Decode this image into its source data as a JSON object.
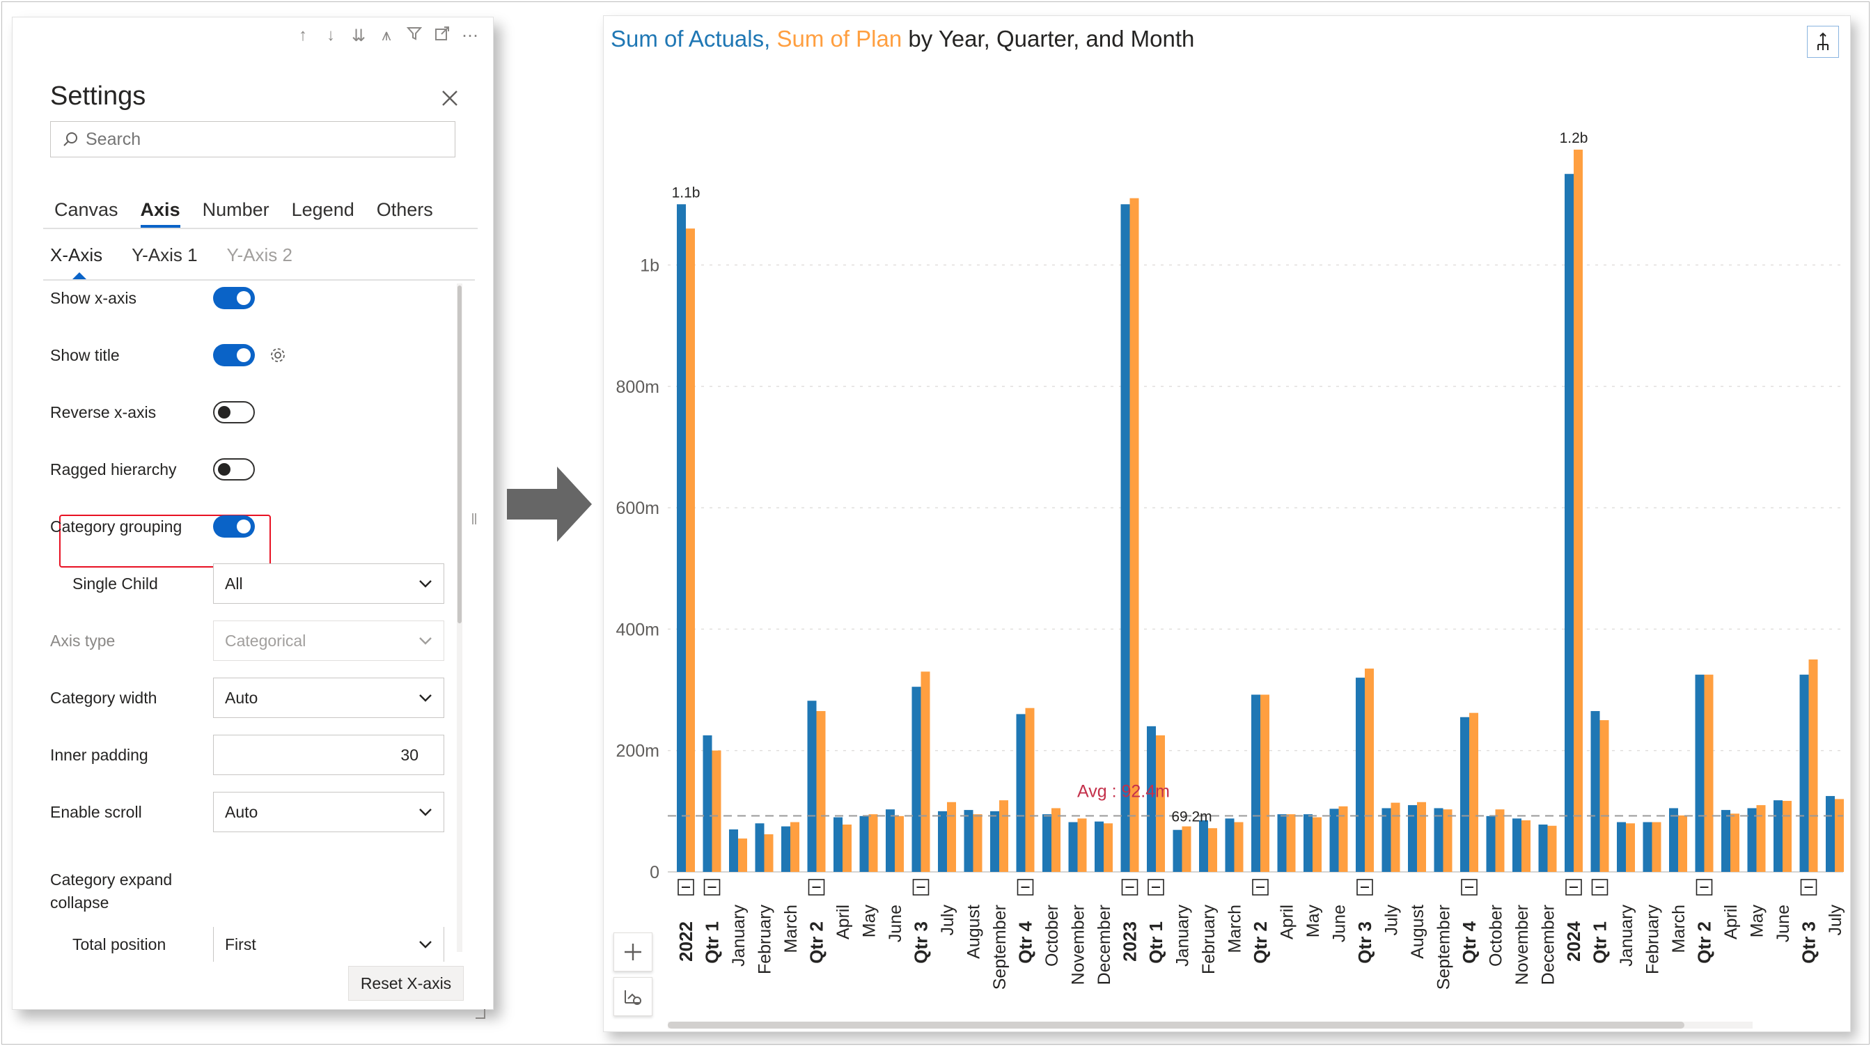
{
  "settings": {
    "title": "Settings",
    "search_placeholder": "Search",
    "tabs": [
      "Canvas",
      "Axis",
      "Number",
      "Legend",
      "Others"
    ],
    "active_tab": "Axis",
    "subtabs": [
      "X-Axis",
      "Y-Axis 1",
      "Y-Axis 2"
    ],
    "active_subtab": "X-Axis",
    "toggles": {
      "show_x_axis": {
        "label": "Show x-axis",
        "on": true
      },
      "show_title": {
        "label": "Show title",
        "on": true
      },
      "reverse_x_axis": {
        "label": "Reverse x-axis",
        "on": false
      },
      "ragged_hierarchy": {
        "label": "Ragged hierarchy",
        "on": false
      },
      "category_grouping": {
        "label": "Category grouping",
        "on": true
      }
    },
    "fields": {
      "single_child": {
        "label": "Single Child",
        "value": "All"
      },
      "axis_type": {
        "label": "Axis type",
        "value": "Categorical"
      },
      "category_width": {
        "label": "Category width",
        "value": "Auto"
      },
      "inner_padding": {
        "label": "Inner padding",
        "value": "30"
      },
      "enable_scroll": {
        "label": "Enable scroll",
        "value": "Auto"
      },
      "category_expand_collapse": {
        "label": "Category expand collapse"
      },
      "total_position": {
        "label": "Total position",
        "value": "First"
      }
    },
    "reset_label": "Reset X-axis",
    "toolbar_icons": [
      "arrow-up-icon",
      "arrow-down-icon",
      "double-arrow-down-icon",
      "hierarchy-icon",
      "filter-icon",
      "focus-mode-icon",
      "more-options-icon"
    ]
  },
  "chart": {
    "title_series_1": "Sum of Actuals,",
    "title_series_2": "Sum of Plan",
    "title_rest": "by Year, Quarter, and Month",
    "colors": {
      "actuals": "#1f77b4",
      "plan": "#ff9f40",
      "avg_line": "#9a9a9a",
      "avg_label": "#c4314b"
    },
    "avg_label": "Avg : 92.4m",
    "label_2023_jan": "69.2m"
  },
  "chart_data": {
    "type": "bar",
    "y_ticks": [
      "0",
      "200m",
      "400m",
      "600m",
      "800m",
      "1b"
    ],
    "ylim": [
      0,
      1230000000
    ],
    "grid": true,
    "average": 92400000,
    "categories": [
      {
        "label": "2022",
        "level": "year",
        "collapsible": true
      },
      {
        "label": "Qtr 1",
        "level": "quarter",
        "collapsible": true
      },
      {
        "label": "January",
        "level": "month"
      },
      {
        "label": "February",
        "level": "month"
      },
      {
        "label": "March",
        "level": "month"
      },
      {
        "label": "Qtr 2",
        "level": "quarter",
        "collapsible": true
      },
      {
        "label": "April",
        "level": "month"
      },
      {
        "label": "May",
        "level": "month"
      },
      {
        "label": "June",
        "level": "month"
      },
      {
        "label": "Qtr 3",
        "level": "quarter",
        "collapsible": true
      },
      {
        "label": "July",
        "level": "month"
      },
      {
        "label": "August",
        "level": "month"
      },
      {
        "label": "September",
        "level": "month"
      },
      {
        "label": "Qtr 4",
        "level": "quarter",
        "collapsible": true
      },
      {
        "label": "October",
        "level": "month"
      },
      {
        "label": "November",
        "level": "month"
      },
      {
        "label": "December",
        "level": "month"
      },
      {
        "label": "2023",
        "level": "year",
        "collapsible": true
      },
      {
        "label": "Qtr 1",
        "level": "quarter",
        "collapsible": true
      },
      {
        "label": "January",
        "level": "month"
      },
      {
        "label": "February",
        "level": "month"
      },
      {
        "label": "March",
        "level": "month"
      },
      {
        "label": "Qtr 2",
        "level": "quarter",
        "collapsible": true
      },
      {
        "label": "April",
        "level": "month"
      },
      {
        "label": "May",
        "level": "month"
      },
      {
        "label": "June",
        "level": "month"
      },
      {
        "label": "Qtr 3",
        "level": "quarter",
        "collapsible": true
      },
      {
        "label": "July",
        "level": "month"
      },
      {
        "label": "August",
        "level": "month"
      },
      {
        "label": "September",
        "level": "month"
      },
      {
        "label": "Qtr 4",
        "level": "quarter",
        "collapsible": true
      },
      {
        "label": "October",
        "level": "month"
      },
      {
        "label": "November",
        "level": "month"
      },
      {
        "label": "December",
        "level": "month"
      },
      {
        "label": "2024",
        "level": "year",
        "collapsible": true
      },
      {
        "label": "Qtr 1",
        "level": "quarter",
        "collapsible": true
      },
      {
        "label": "January",
        "level": "month"
      },
      {
        "label": "February",
        "level": "month"
      },
      {
        "label": "March",
        "level": "month"
      },
      {
        "label": "Qtr 2",
        "level": "quarter",
        "collapsible": true
      },
      {
        "label": "April",
        "level": "month"
      },
      {
        "label": "May",
        "level": "month"
      },
      {
        "label": "June",
        "level": "month"
      },
      {
        "label": "Qtr 3",
        "level": "quarter",
        "collapsible": true
      },
      {
        "label": "July",
        "level": "month"
      }
    ],
    "series": [
      {
        "name": "Sum of Actuals",
        "values": [
          1100000000,
          225000000,
          70000000,
          80000000,
          75000000,
          282000000,
          90000000,
          92000000,
          103000000,
          305000000,
          100000000,
          102000000,
          100000000,
          260000000,
          95000000,
          82000000,
          83000000,
          1100000000,
          240000000,
          69200000,
          85000000,
          88000000,
          292000000,
          95000000,
          95000000,
          104000000,
          320000000,
          105000000,
          110000000,
          105000000,
          255000000,
          92000000,
          88000000,
          78000000,
          1150000000,
          265000000,
          82000000,
          82000000,
          105000000,
          325000000,
          102000000,
          105000000,
          118000000,
          325000000,
          125000000
        ]
      },
      {
        "name": "Sum of Plan",
        "values": [
          1060000000,
          200000000,
          55000000,
          62000000,
          82000000,
          265000000,
          78000000,
          95000000,
          92000000,
          330000000,
          115000000,
          95000000,
          118000000,
          270000000,
          105000000,
          88000000,
          80000000,
          1110000000,
          225000000,
          75000000,
          72000000,
          82000000,
          292000000,
          95000000,
          90000000,
          108000000,
          335000000,
          114000000,
          115000000,
          103000000,
          262000000,
          103000000,
          85000000,
          76000000,
          1190000000,
          250000000,
          80000000,
          82000000,
          93000000,
          325000000,
          96000000,
          110000000,
          117000000,
          350000000,
          120000000
        ]
      }
    ],
    "data_labels": [
      {
        "category_index": 0,
        "text": "1.1b"
      },
      {
        "category_index": 34,
        "text": "1.2b"
      }
    ]
  }
}
